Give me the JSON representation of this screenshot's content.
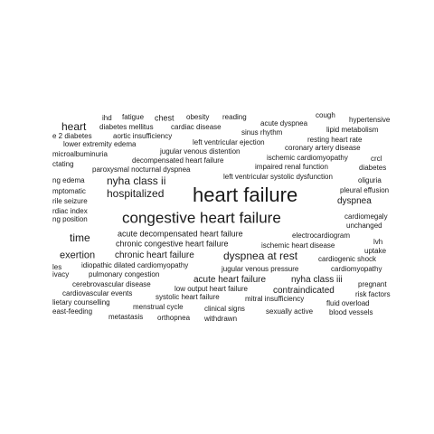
{
  "words": [
    "heart failure",
    "congestive heart failure",
    "nyha class ii",
    "hospitalized",
    "dyspnea at rest",
    "heart",
    "time",
    "exertion",
    "chronic heart failure",
    "acute decompensated heart failure",
    "chronic congestive heart failure",
    "dyspnea",
    "acute heart failure",
    "contraindicated",
    "nyha class iii",
    "ihd",
    "fatigue",
    "chest",
    "obesity",
    "reading",
    "acute dyspnea",
    "cough",
    "hypertensive",
    "e 2 diabetes",
    "diabetes mellitus",
    "cardiac disease",
    "sinus rhythm",
    "lipid metabolism",
    "aortic insufficiency",
    "resting heart rate",
    "lower extremity edema",
    "left ventricular ejection",
    "coronary artery disease",
    "microalbuminuria",
    "jugular venous distention",
    "ischemic cardiomyopathy",
    "crcl",
    "ctating",
    "decompensated heart failure",
    "impaired renal function",
    "diabetes",
    "paroxysmal nocturnal dyspnea",
    "left ventricular systolic dysfunction",
    "oliguria",
    "ng edema",
    "pleural effusion",
    "mptomatic",
    "rile seizure",
    "rdiac index",
    "cardiomegaly",
    "ng position",
    "unchanged",
    "electrocardiogram",
    "ischemic heart disease",
    "lvh",
    "uptake",
    "cardiogenic shock",
    "les",
    "idiopathic dilated cardiomyopathy",
    "jugular venous pressure",
    "cardiomyopathy",
    "ivacy",
    "pulmonary congestion",
    "cerebrovascular disease",
    "low output heart failure",
    "pregnant",
    "cardiovascular events",
    "systolic heart failure",
    "mitral insufficiency",
    "risk factors",
    "lietary counselling",
    "menstrual cycle",
    "clinical signs",
    "fluid overload",
    "east-feeding",
    "metastasis",
    "orthopnea",
    "withdrawn",
    "sexually active",
    "blood vessels"
  ]
}
